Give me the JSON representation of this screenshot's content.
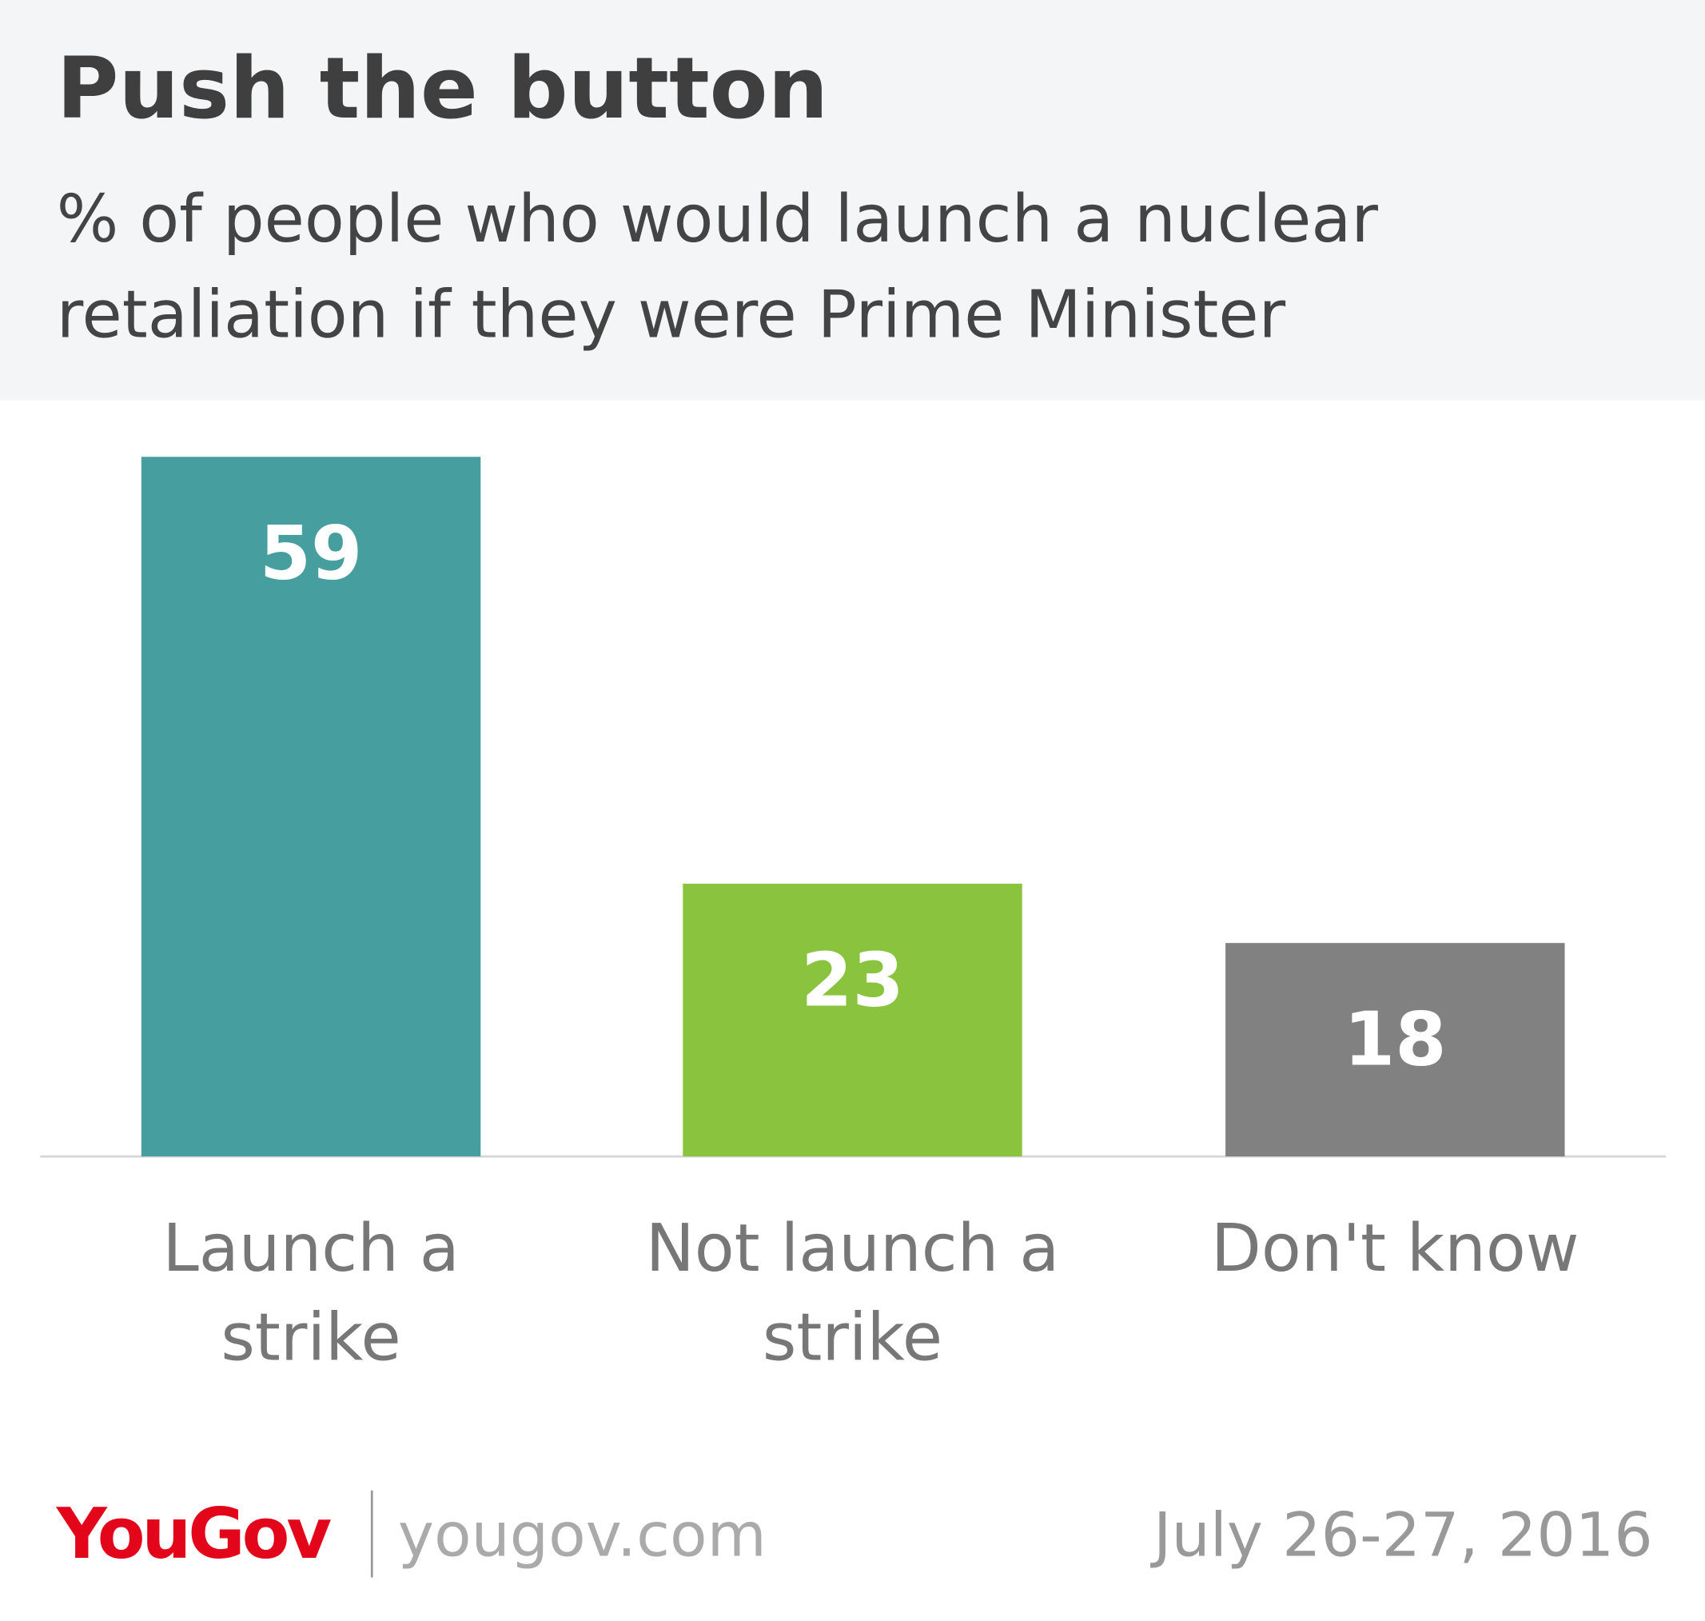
{
  "chart_data": {
    "type": "bar",
    "title": "Push the button",
    "subtitle": "% of people who would launch a nuclear retaliation if they were Prime Minister",
    "categories": [
      "Launch a strike",
      "Not launch a strike",
      "Don't know"
    ],
    "values": [
      59,
      23,
      18
    ],
    "colors": [
      "#469e9f",
      "#8ac43f",
      "#818181"
    ],
    "ylim": [
      0,
      60
    ],
    "brand": "YouGov",
    "website": "yougov.com",
    "date": "July 26-27, 2016"
  }
}
